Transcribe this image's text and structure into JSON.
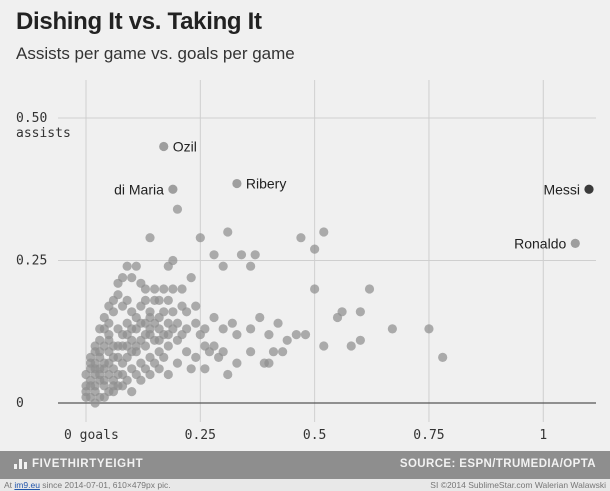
{
  "header": {
    "title": "Dishing It vs. Taking It",
    "subtitle": "Assists per game vs. goals per game"
  },
  "footer": {
    "brand": "FIVETHIRTYEIGHT",
    "source": "SOURCE: ESPN/TRUMEDIA/OPTA"
  },
  "credits": {
    "left_prefix": "At ",
    "left_link": "im9.eu",
    "left_text": " since 2014-07-01, 610×479px pic.",
    "right": "SI ©2014 SublimeStar.com Walerian Walawski"
  },
  "colors": {
    "dot": "#8f8f8f",
    "highlight": "#3a3a3a",
    "grid": "#cfcfcf",
    "axis": "#555555"
  },
  "chart_data": {
    "type": "scatter",
    "title": "Dishing It vs. Taking It",
    "subtitle": "Assists per game vs. goals per game",
    "xlim": [
      0,
      1.1
    ],
    "ylim": [
      0,
      0.55
    ],
    "x_ticks": [
      {
        "value": 0,
        "label": "0 goals"
      },
      {
        "value": 0.25,
        "label": "0.25"
      },
      {
        "value": 0.5,
        "label": "0.5"
      },
      {
        "value": 0.75,
        "label": "0.75"
      },
      {
        "value": 1,
        "label": "1"
      }
    ],
    "y_ticks": [
      {
        "value": 0,
        "label": "0"
      },
      {
        "value": 0.25,
        "label": "0.25"
      },
      {
        "value": 0.5,
        "label": "0.50",
        "label2": "assists"
      }
    ],
    "grid": true,
    "labeled_points": [
      {
        "name": "Ozil",
        "x": 0.17,
        "y": 0.45,
        "label_side": "right",
        "highlight": false
      },
      {
        "name": "di Maria",
        "x": 0.19,
        "y": 0.375,
        "label_side": "left",
        "highlight": false
      },
      {
        "name": "Ribery",
        "x": 0.33,
        "y": 0.385,
        "label_side": "right",
        "highlight": false
      },
      {
        "name": "Messi",
        "x": 1.1,
        "y": 0.375,
        "label_side": "left",
        "highlight": true
      },
      {
        "name": "Ronaldo",
        "x": 1.07,
        "y": 0.28,
        "label_side": "left",
        "highlight": false
      }
    ],
    "points": [
      [
        0.2,
        0.34
      ],
      [
        0.25,
        0.29
      ],
      [
        0.31,
        0.3
      ],
      [
        0.36,
        0.24
      ],
      [
        0.47,
        0.29
      ],
      [
        0.52,
        0.3
      ],
      [
        0.5,
        0.27
      ],
      [
        0.37,
        0.26
      ],
      [
        0.34,
        0.26
      ],
      [
        0.3,
        0.24
      ],
      [
        0.14,
        0.29
      ],
      [
        0.19,
        0.25
      ],
      [
        0.23,
        0.22
      ],
      [
        0.28,
        0.26
      ],
      [
        0.11,
        0.24
      ],
      [
        0.12,
        0.21
      ],
      [
        0.13,
        0.2
      ],
      [
        0.15,
        0.2
      ],
      [
        0.16,
        0.18
      ],
      [
        0.18,
        0.24
      ],
      [
        0.21,
        0.2
      ],
      [
        0.22,
        0.16
      ],
      [
        0.24,
        0.17
      ],
      [
        0.26,
        0.13
      ],
      [
        0.28,
        0.15
      ],
      [
        0.3,
        0.13
      ],
      [
        0.32,
        0.14
      ],
      [
        0.33,
        0.12
      ],
      [
        0.36,
        0.13
      ],
      [
        0.38,
        0.15
      ],
      [
        0.4,
        0.12
      ],
      [
        0.42,
        0.14
      ],
      [
        0.44,
        0.11
      ],
      [
        0.46,
        0.12
      ],
      [
        0.48,
        0.12
      ],
      [
        0.5,
        0.2
      ],
      [
        0.52,
        0.1
      ],
      [
        0.55,
        0.15
      ],
      [
        0.58,
        0.1
      ],
      [
        0.6,
        0.11
      ],
      [
        0.62,
        0.2
      ],
      [
        0.6,
        0.16
      ],
      [
        0.56,
        0.16
      ],
      [
        0.67,
        0.13
      ],
      [
        0.75,
        0.13
      ],
      [
        0.78,
        0.08
      ],
      [
        0.39,
        0.07
      ],
      [
        0.36,
        0.09
      ],
      [
        0.41,
        0.09
      ],
      [
        0.43,
        0.09
      ],
      [
        0.4,
        0.07
      ],
      [
        0.33,
        0.07
      ],
      [
        0.31,
        0.05
      ],
      [
        0.29,
        0.08
      ],
      [
        0.27,
        0.09
      ],
      [
        0.26,
        0.1
      ],
      [
        0.25,
        0.12
      ],
      [
        0.23,
        0.06
      ],
      [
        0.21,
        0.12
      ],
      [
        0.2,
        0.11
      ],
      [
        0.19,
        0.16
      ],
      [
        0.17,
        0.2
      ],
      [
        0.15,
        0.18
      ],
      [
        0.14,
        0.16
      ],
      [
        0.13,
        0.14
      ],
      [
        0.11,
        0.13
      ],
      [
        0.1,
        0.16
      ],
      [
        0.09,
        0.18
      ],
      [
        0.08,
        0.17
      ],
      [
        0.07,
        0.19
      ],
      [
        0.06,
        0.16
      ],
      [
        0.05,
        0.14
      ],
      [
        0.04,
        0.1
      ],
      [
        0.03,
        0.09
      ],
      [
        0.02,
        0.06
      ],
      [
        0.01,
        0.04
      ],
      [
        0.0,
        0.02
      ],
      [
        0.01,
        0.01
      ],
      [
        0.02,
        0.02
      ],
      [
        0.03,
        0.01
      ],
      [
        0.04,
        0.03
      ],
      [
        0.05,
        0.02
      ],
      [
        0.06,
        0.04
      ],
      [
        0.07,
        0.03
      ],
      [
        0.08,
        0.05
      ],
      [
        0.09,
        0.04
      ],
      [
        0.1,
        0.06
      ],
      [
        0.11,
        0.05
      ],
      [
        0.12,
        0.07
      ],
      [
        0.13,
        0.06
      ],
      [
        0.14,
        0.08
      ],
      [
        0.15,
        0.07
      ],
      [
        0.16,
        0.09
      ],
      [
        0.17,
        0.08
      ],
      [
        0.18,
        0.1
      ],
      [
        0.0,
        0.05
      ],
      [
        0.01,
        0.07
      ],
      [
        0.02,
        0.09
      ],
      [
        0.03,
        0.11
      ],
      [
        0.04,
        0.13
      ],
      [
        0.05,
        0.12
      ],
      [
        0.06,
        0.1
      ],
      [
        0.07,
        0.08
      ],
      [
        0.08,
        0.1
      ],
      [
        0.09,
        0.12
      ],
      [
        0.1,
        0.11
      ],
      [
        0.11,
        0.09
      ],
      [
        0.12,
        0.11
      ],
      [
        0.13,
        0.1
      ],
      [
        0.14,
        0.12
      ],
      [
        0.15,
        0.11
      ],
      [
        0.16,
        0.13
      ],
      [
        0.17,
        0.12
      ],
      [
        0.18,
        0.14
      ],
      [
        0.19,
        0.13
      ],
      [
        0.02,
        0.03
      ],
      [
        0.03,
        0.05
      ],
      [
        0.04,
        0.06
      ],
      [
        0.05,
        0.07
      ],
      [
        0.06,
        0.06
      ],
      [
        0.07,
        0.05
      ],
      [
        0.08,
        0.07
      ],
      [
        0.09,
        0.08
      ],
      [
        0.1,
        0.09
      ],
      [
        0.11,
        0.1
      ],
      [
        0.01,
        0.08
      ],
      [
        0.02,
        0.1
      ],
      [
        0.03,
        0.13
      ],
      [
        0.04,
        0.15
      ],
      [
        0.05,
        0.17
      ],
      [
        0.06,
        0.18
      ],
      [
        0.07,
        0.21
      ],
      [
        0.08,
        0.22
      ],
      [
        0.09,
        0.24
      ],
      [
        0.1,
        0.22
      ],
      [
        0.12,
        0.17
      ],
      [
        0.13,
        0.18
      ],
      [
        0.14,
        0.15
      ],
      [
        0.16,
        0.15
      ],
      [
        0.18,
        0.18
      ],
      [
        0.2,
        0.14
      ],
      [
        0.22,
        0.13
      ],
      [
        0.24,
        0.14
      ],
      [
        0.21,
        0.17
      ],
      [
        0.19,
        0.2
      ],
      [
        0.17,
        0.16
      ],
      [
        0.15,
        0.14
      ],
      [
        0.13,
        0.12
      ],
      [
        0.11,
        0.15
      ],
      [
        0.09,
        0.14
      ],
      [
        0.07,
        0.13
      ],
      [
        0.05,
        0.11
      ],
      [
        0.03,
        0.08
      ],
      [
        0.01,
        0.03
      ],
      [
        0.0,
        0.01
      ],
      [
        0.02,
        0.0
      ],
      [
        0.04,
        0.01
      ],
      [
        0.06,
        0.02
      ],
      [
        0.08,
        0.03
      ],
      [
        0.1,
        0.02
      ],
      [
        0.12,
        0.04
      ],
      [
        0.14,
        0.05
      ],
      [
        0.16,
        0.06
      ],
      [
        0.18,
        0.05
      ],
      [
        0.2,
        0.07
      ],
      [
        0.22,
        0.09
      ],
      [
        0.24,
        0.08
      ],
      [
        0.26,
        0.06
      ],
      [
        0.28,
        0.1
      ],
      [
        0.3,
        0.09
      ],
      [
        0.06,
        0.08
      ],
      [
        0.07,
        0.1
      ],
      [
        0.08,
        0.12
      ],
      [
        0.05,
        0.09
      ],
      [
        0.04,
        0.07
      ],
      [
        0.03,
        0.04
      ],
      [
        0.02,
        0.05
      ],
      [
        0.01,
        0.06
      ],
      [
        0.0,
        0.03
      ],
      [
        0.09,
        0.1
      ],
      [
        0.1,
        0.13
      ],
      [
        0.12,
        0.14
      ],
      [
        0.14,
        0.13
      ],
      [
        0.16,
        0.11
      ],
      [
        0.18,
        0.12
      ],
      [
        0.02,
        0.07
      ],
      [
        0.03,
        0.06
      ],
      [
        0.04,
        0.04
      ],
      [
        0.05,
        0.05
      ],
      [
        0.06,
        0.03
      ]
    ]
  }
}
